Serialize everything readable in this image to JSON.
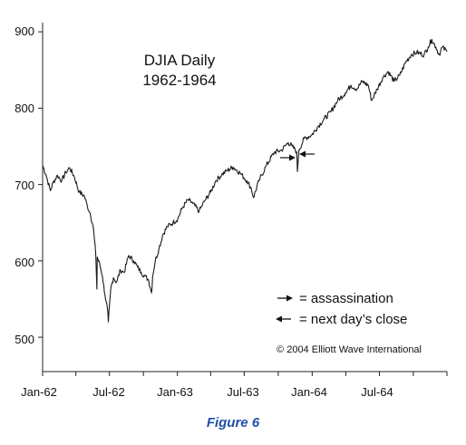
{
  "chart_data": {
    "type": "line",
    "title_lines": [
      "DJIA Daily",
      "1962-1964"
    ],
    "x_domain": [
      "1962-01-01",
      "1964-12-31"
    ],
    "y_domain": [
      455,
      912
    ],
    "y_ticks": [
      500,
      600,
      700,
      800,
      900
    ],
    "x_ticks": [
      {
        "label": "Jan-62",
        "date": "1962-01-01"
      },
      {
        "label": "Jul-62",
        "date": "1962-07-01"
      },
      {
        "label": "Jan-63",
        "date": "1963-01-01"
      },
      {
        "label": "Jul-63",
        "date": "1963-07-01"
      },
      {
        "label": "Jan-64",
        "date": "1964-01-01"
      },
      {
        "label": "Jul-64",
        "date": "1964-07-01"
      }
    ],
    "x_minor_ticks": [
      "1962-04-01",
      "1962-10-01",
      "1963-04-01",
      "1963-10-01",
      "1964-04-01",
      "1964-10-01"
    ],
    "grid": false,
    "series": [
      {
        "points": [
          [
            "1962-01-01",
            725
          ],
          [
            "1962-01-10",
            713
          ],
          [
            "1962-01-22",
            692
          ],
          [
            "1962-01-29",
            702
          ],
          [
            "1962-02-10",
            712
          ],
          [
            "1962-02-22",
            705
          ],
          [
            "1962-03-05",
            716
          ],
          [
            "1962-03-15",
            722
          ],
          [
            "1962-03-28",
            710
          ],
          [
            "1962-04-10",
            690
          ],
          [
            "1962-04-24",
            685
          ],
          [
            "1962-05-02",
            672
          ],
          [
            "1962-05-10",
            662
          ],
          [
            "1962-05-18",
            645
          ],
          [
            "1962-05-25",
            608
          ],
          [
            "1962-05-28",
            563
          ],
          [
            "1962-05-29",
            605
          ],
          [
            "1962-06-05",
            595
          ],
          [
            "1962-06-12",
            580
          ],
          [
            "1962-06-19",
            555
          ],
          [
            "1962-06-26",
            535
          ],
          [
            "1962-06-28",
            520
          ],
          [
            "1962-07-05",
            565
          ],
          [
            "1962-07-12",
            578
          ],
          [
            "1962-07-20",
            572
          ],
          [
            "1962-07-31",
            588
          ],
          [
            "1962-08-10",
            585
          ],
          [
            "1962-08-22",
            607
          ],
          [
            "1962-09-05",
            600
          ],
          [
            "1962-09-15",
            592
          ],
          [
            "1962-09-25",
            585
          ],
          [
            "1962-10-05",
            580
          ],
          [
            "1962-10-15",
            575
          ],
          [
            "1962-10-23",
            558
          ],
          [
            "1962-10-26",
            580
          ],
          [
            "1962-11-02",
            600
          ],
          [
            "1962-11-12",
            616
          ],
          [
            "1962-11-23",
            635
          ],
          [
            "1962-12-05",
            645
          ],
          [
            "1962-12-20",
            650
          ],
          [
            "1963-01-02",
            655
          ],
          [
            "1963-01-15",
            670
          ],
          [
            "1963-01-30",
            680
          ],
          [
            "1963-02-12",
            675
          ],
          [
            "1963-03-01",
            665
          ],
          [
            "1963-03-15",
            678
          ],
          [
            "1963-04-01",
            690
          ],
          [
            "1963-04-15",
            705
          ],
          [
            "1963-05-01",
            713
          ],
          [
            "1963-05-15",
            718
          ],
          [
            "1963-06-01",
            723
          ],
          [
            "1963-06-20",
            715
          ],
          [
            "1963-07-08",
            705
          ],
          [
            "1963-07-20",
            695
          ],
          [
            "1963-07-26",
            683
          ],
          [
            "1963-08-10",
            705
          ],
          [
            "1963-08-30",
            725
          ],
          [
            "1963-09-20",
            742
          ],
          [
            "1963-10-10",
            745
          ],
          [
            "1963-10-28",
            755
          ],
          [
            "1963-11-08",
            750
          ],
          [
            "1963-11-20",
            743
          ],
          [
            "1963-11-22",
            717
          ],
          [
            "1963-11-26",
            745
          ],
          [
            "1963-12-10",
            760
          ],
          [
            "1963-12-31",
            765
          ],
          [
            "1964-01-15",
            775
          ],
          [
            "1964-02-01",
            785
          ],
          [
            "1964-02-20",
            795
          ],
          [
            "1964-03-10",
            810
          ],
          [
            "1964-03-31",
            820
          ],
          [
            "1964-04-15",
            830
          ],
          [
            "1964-05-01",
            825
          ],
          [
            "1964-05-15",
            835
          ],
          [
            "1964-06-01",
            830
          ],
          [
            "1964-06-10",
            810
          ],
          [
            "1964-06-25",
            825
          ],
          [
            "1964-07-10",
            840
          ],
          [
            "1964-07-25",
            848
          ],
          [
            "1964-08-10",
            835
          ],
          [
            "1964-08-25",
            843
          ],
          [
            "1964-09-10",
            860
          ],
          [
            "1964-09-25",
            870
          ],
          [
            "1964-10-10",
            873
          ],
          [
            "1964-10-30",
            870
          ],
          [
            "1964-11-10",
            880
          ],
          [
            "1964-11-20",
            890
          ],
          [
            "1964-12-01",
            880
          ],
          [
            "1964-12-10",
            870
          ],
          [
            "1964-12-18",
            880
          ],
          [
            "1964-12-31",
            874
          ]
        ]
      }
    ]
  },
  "legend": {
    "assassination": "= assassination",
    "next_close": "= next day’s close"
  },
  "copyright": "© 2004 Elliott Wave International",
  "caption": "Figure 6",
  "colors": {
    "line": "#1a1a1a",
    "axis": "#222222",
    "caption": "#1f4fa8"
  }
}
